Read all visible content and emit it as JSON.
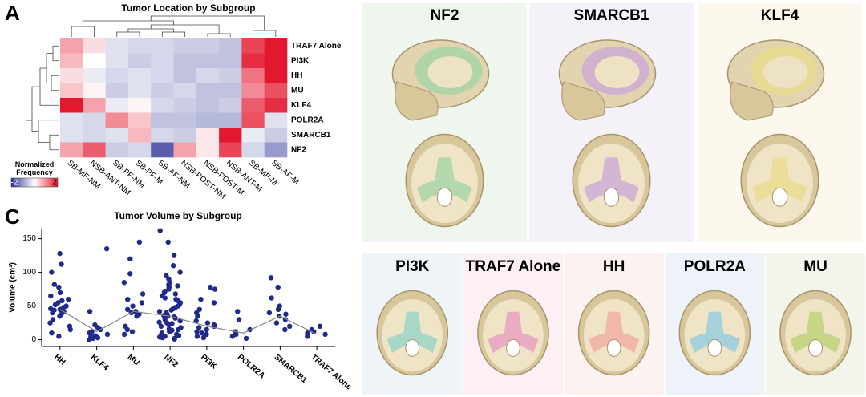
{
  "panel_labels": [
    "A",
    "B",
    "C"
  ],
  "chart_data": [
    {
      "type": "heatmap",
      "title": "Tumor Location by Subgroup",
      "columns": [
        "SB-MF-NM",
        "NSB-ANT-NM",
        "SB-PF-NM",
        "SB-PF-M",
        "SB-AF-NM",
        "NSB-POST-NM",
        "NSB-POST-M",
        "NSB-ANT-M",
        "SB-MF-M",
        "SB-AF-M"
      ],
      "rows": [
        "TRAF7 Alone",
        "PI3K",
        "HH",
        "MU",
        "KLF4",
        "POLR2A",
        "SMARCB1",
        "NF2"
      ],
      "values": [
        [
          0.8,
          0.3,
          -0.3,
          -0.4,
          -0.4,
          -0.5,
          -0.5,
          -0.6,
          1.6,
          2
        ],
        [
          0.6,
          0,
          -0.3,
          -0.5,
          -0.4,
          -0.6,
          -0.6,
          -0.6,
          1.8,
          2
        ],
        [
          0.3,
          -0.2,
          -0.4,
          -0.3,
          -0.4,
          -0.6,
          -0.4,
          -0.5,
          1.2,
          2
        ],
        [
          0.5,
          0.1,
          -0.5,
          -0.3,
          -0.5,
          -0.4,
          -0.6,
          -0.6,
          1,
          1.5
        ],
        [
          2,
          0.8,
          -0.2,
          0.1,
          -0.4,
          -0.5,
          -0.6,
          -0.5,
          1.4,
          1.8
        ],
        [
          -0.3,
          -0.4,
          1,
          0.5,
          -0.6,
          -0.6,
          -0.7,
          -0.7,
          1.5,
          -0.3
        ],
        [
          -0.3,
          -0.4,
          -0.3,
          0.6,
          -0.4,
          -0.5,
          0.2,
          2,
          -0.2,
          -0.5
        ],
        [
          0.8,
          1.4,
          -0.5,
          -0.4,
          -1.6,
          0.8,
          0.2,
          1.6,
          -0.4,
          -1
        ]
      ],
      "colorbar_title": "Normalized Frequency",
      "zlim": [
        -2,
        2
      ],
      "zticks": [
        -2,
        2
      ],
      "colors": [
        "#2f3596",
        "#ffffff",
        "#e3172d"
      ]
    },
    {
      "type": "strip",
      "title": "Tumor Volume by Subgroup",
      "y_label": "Volume (cm³)",
      "categories": [
        "HH",
        "KLF4",
        "MU",
        "NF2",
        "PI3K",
        "POLR2A",
        "SMARCB1",
        "TRAF7 Alone"
      ],
      "values": [
        45,
        12,
        42,
        35,
        20,
        10,
        35,
        8
      ],
      "points": [
        [
          128,
          112,
          100,
          82,
          78,
          70,
          65,
          60,
          58,
          55,
          52,
          50,
          48,
          46,
          45,
          44,
          42,
          40,
          38,
          35,
          30,
          25,
          20,
          15,
          10,
          5
        ],
        [
          135,
          42,
          22,
          18,
          15,
          12,
          10,
          8,
          6,
          5,
          3,
          2,
          0
        ],
        [
          145,
          120,
          98,
          85,
          68,
          60,
          55,
          50,
          45,
          42,
          40,
          38,
          35,
          20,
          15,
          12,
          8
        ],
        [
          162,
          145,
          125,
          110,
          100,
          95,
          90,
          85,
          82,
          80,
          78,
          75,
          72,
          70,
          68,
          65,
          62,
          60,
          58,
          55,
          52,
          50,
          48,
          46,
          44,
          42,
          40,
          38,
          36,
          35,
          34,
          32,
          30,
          28,
          26,
          25,
          24,
          22,
          20,
          18,
          16,
          15,
          14,
          12,
          10,
          8,
          6,
          5,
          4,
          3,
          2,
          1
        ],
        [
          78,
          75,
          60,
          55,
          45,
          40,
          35,
          28,
          25,
          22,
          20,
          18,
          15,
          12,
          10,
          8,
          5,
          3
        ],
        [
          42,
          30,
          15,
          12,
          8,
          5,
          2
        ],
        [
          92,
          78,
          62,
          50,
          45,
          40,
          38,
          35,
          30,
          25,
          20,
          15
        ],
        [
          20,
          15,
          12,
          10,
          8,
          6,
          5
        ]
      ],
      "color": "#1f2a8a",
      "line_color": "#888888",
      "ylim": [
        -10,
        165
      ],
      "yticks": [
        0,
        50,
        100,
        150
      ]
    }
  ],
  "panel_b": {
    "tiles": [
      {
        "label": "NF2",
        "color": "#9fd4a4"
      },
      {
        "label": "SMARCB1",
        "color": "#c9a6d8"
      },
      {
        "label": "KLF4",
        "color": "#e8dc8a"
      },
      {
        "label": "PI3K",
        "color": "#8fd4c4"
      },
      {
        "label": "TRAF7 Alone",
        "color": "#e89ac0"
      },
      {
        "label": "HH",
        "color": "#f0a8a0"
      },
      {
        "label": "POLR2A",
        "color": "#8ccbe0"
      },
      {
        "label": "MU",
        "color": "#b8d070"
      }
    ]
  }
}
